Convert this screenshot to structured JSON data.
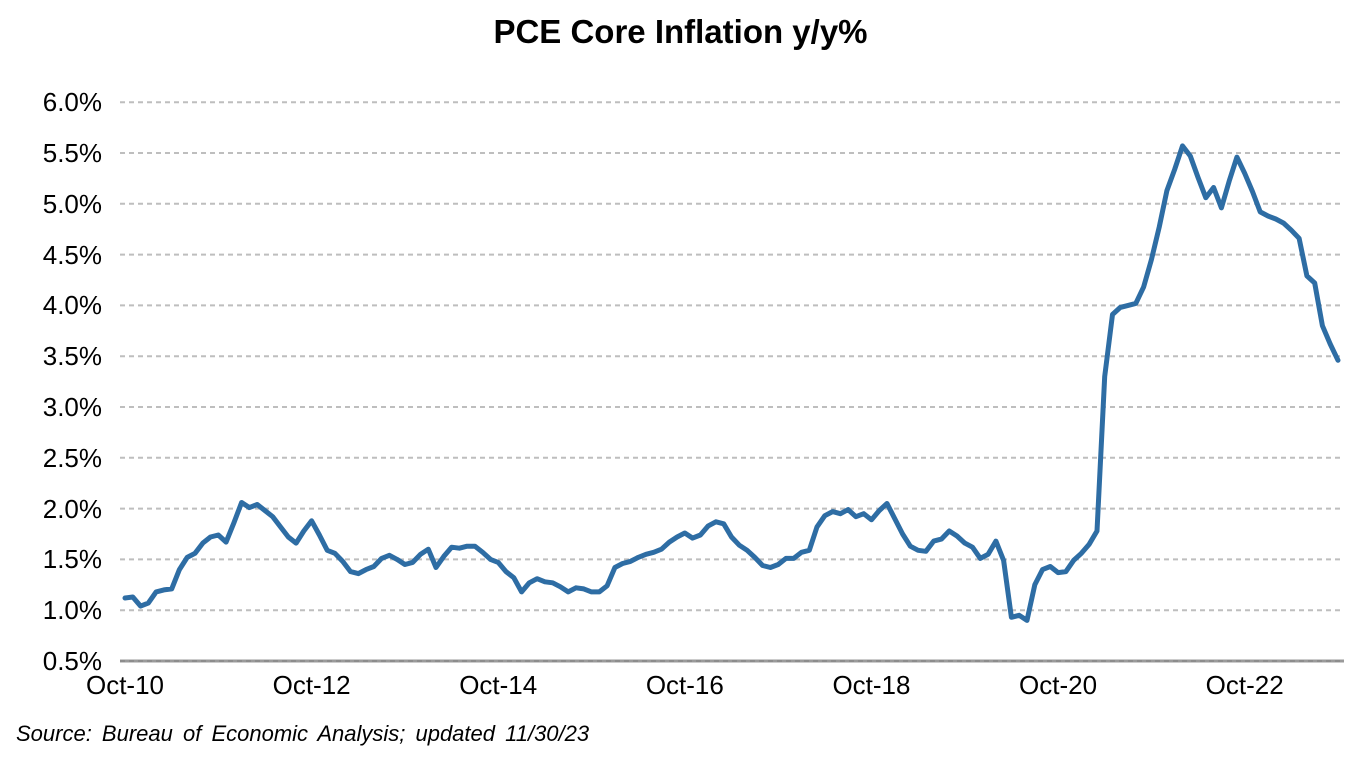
{
  "title": "PCE Core Inflation y/y%",
  "source_note": "Source: Bureau of Economic Analysis; updated 11/30/23",
  "colors": {
    "line": "#2E6DA4",
    "gridline": "#BEBEBE",
    "axis_line": "#9A9A9A",
    "text": "#000000",
    "background": "#FFFFFF"
  },
  "chart_data": {
    "type": "line",
    "title": "PCE Core Inflation y/y%",
    "xlabel": "",
    "ylabel": "",
    "frequency": "monthly",
    "ylim": [
      0.5,
      6.0
    ],
    "y_tick_step": 0.5,
    "grid": "horizontal-dashed",
    "legend": "none",
    "y_tick_labels": [
      "0.5%",
      "1.0%",
      "1.5%",
      "2.0%",
      "2.5%",
      "3.0%",
      "3.5%",
      "4.0%",
      "4.5%",
      "5.0%",
      "5.5%",
      "6.0%"
    ],
    "x_tick_labels": [
      "Oct-10",
      "Oct-12",
      "Oct-14",
      "Oct-16",
      "Oct-18",
      "Oct-20",
      "Oct-22"
    ],
    "x_tick_month_indices": [
      0,
      24,
      48,
      72,
      96,
      120,
      144
    ],
    "months": [
      "Oct-10",
      "Nov-10",
      "Dec-10",
      "Jan-11",
      "Feb-11",
      "Mar-11",
      "Apr-11",
      "May-11",
      "Jun-11",
      "Jul-11",
      "Aug-11",
      "Sep-11",
      "Oct-11",
      "Nov-11",
      "Dec-11",
      "Jan-12",
      "Feb-12",
      "Mar-12",
      "Apr-12",
      "May-12",
      "Jun-12",
      "Jul-12",
      "Aug-12",
      "Sep-12",
      "Oct-12",
      "Nov-12",
      "Dec-12",
      "Jan-13",
      "Feb-13",
      "Mar-13",
      "Apr-13",
      "May-13",
      "Jun-13",
      "Jul-13",
      "Aug-13",
      "Sep-13",
      "Oct-13",
      "Nov-13",
      "Dec-13",
      "Jan-14",
      "Feb-14",
      "Mar-14",
      "Apr-14",
      "May-14",
      "Jun-14",
      "Jul-14",
      "Aug-14",
      "Sep-14",
      "Oct-14",
      "Nov-14",
      "Dec-14",
      "Jan-15",
      "Feb-15",
      "Mar-15",
      "Apr-15",
      "May-15",
      "Jun-15",
      "Jul-15",
      "Aug-15",
      "Sep-15",
      "Oct-15",
      "Nov-15",
      "Dec-15",
      "Jan-16",
      "Feb-16",
      "Mar-16",
      "Apr-16",
      "May-16",
      "Jun-16",
      "Jul-16",
      "Aug-16",
      "Sep-16",
      "Oct-16",
      "Nov-16",
      "Dec-16",
      "Jan-17",
      "Feb-17",
      "Mar-17",
      "Apr-17",
      "May-17",
      "Jun-17",
      "Jul-17",
      "Aug-17",
      "Sep-17",
      "Oct-17",
      "Nov-17",
      "Dec-17",
      "Jan-18",
      "Feb-18",
      "Mar-18",
      "Apr-18",
      "May-18",
      "Jun-18",
      "Jul-18",
      "Aug-18",
      "Sep-18",
      "Oct-18",
      "Nov-18",
      "Dec-18",
      "Jan-19",
      "Feb-19",
      "Mar-19",
      "Apr-19",
      "May-19",
      "Jun-19",
      "Jul-19",
      "Aug-19",
      "Sep-19",
      "Oct-19",
      "Nov-19",
      "Dec-19",
      "Jan-20",
      "Feb-20",
      "Mar-20",
      "Apr-20",
      "May-20",
      "Jun-20",
      "Jul-20",
      "Aug-20",
      "Sep-20",
      "Oct-20",
      "Nov-20",
      "Dec-20",
      "Jan-21",
      "Feb-21",
      "Mar-21",
      "Apr-21",
      "May-21",
      "Jun-21",
      "Jul-21",
      "Aug-21",
      "Sep-21",
      "Oct-21",
      "Nov-21",
      "Dec-21",
      "Jan-22",
      "Feb-22",
      "Mar-22",
      "Apr-22",
      "May-22",
      "Jun-22",
      "Jul-22",
      "Aug-22",
      "Sep-22",
      "Oct-22",
      "Nov-22",
      "Dec-22",
      "Jan-23",
      "Feb-23",
      "Mar-23",
      "Apr-23",
      "May-23",
      "Jun-23",
      "Jul-23",
      "Aug-23",
      "Sep-23",
      "Oct-23"
    ],
    "values": [
      1.12,
      1.13,
      1.04,
      1.07,
      1.18,
      1.2,
      1.21,
      1.4,
      1.52,
      1.56,
      1.66,
      1.72,
      1.74,
      1.67,
      1.86,
      2.06,
      2.01,
      2.04,
      1.98,
      1.92,
      1.82,
      1.72,
      1.66,
      1.78,
      1.88,
      1.74,
      1.59,
      1.56,
      1.48,
      1.38,
      1.36,
      1.4,
      1.43,
      1.51,
      1.54,
      1.5,
      1.45,
      1.47,
      1.55,
      1.6,
      1.42,
      1.53,
      1.62,
      1.61,
      1.63,
      1.63,
      1.57,
      1.5,
      1.47,
      1.38,
      1.32,
      1.18,
      1.27,
      1.31,
      1.28,
      1.27,
      1.23,
      1.18,
      1.22,
      1.21,
      1.18,
      1.18,
      1.24,
      1.42,
      1.46,
      1.48,
      1.52,
      1.55,
      1.57,
      1.6,
      1.67,
      1.72,
      1.76,
      1.71,
      1.74,
      1.83,
      1.87,
      1.85,
      1.72,
      1.64,
      1.59,
      1.52,
      1.44,
      1.42,
      1.45,
      1.51,
      1.51,
      1.57,
      1.59,
      1.82,
      1.93,
      1.97,
      1.95,
      1.99,
      1.92,
      1.95,
      1.89,
      1.98,
      2.05,
      1.9,
      1.75,
      1.63,
      1.59,
      1.58,
      1.68,
      1.7,
      1.78,
      1.73,
      1.66,
      1.62,
      1.51,
      1.55,
      1.68,
      1.49,
      0.93,
      0.95,
      0.9,
      1.25,
      1.4,
      1.43,
      1.37,
      1.38,
      1.49,
      1.56,
      1.65,
      1.78,
      3.3,
      3.91,
      3.98,
      4.0,
      4.02,
      4.18,
      4.45,
      4.77,
      5.13,
      5.34,
      5.57,
      5.47,
      5.26,
      5.06,
      5.16,
      4.96,
      5.22,
      5.46,
      5.3,
      5.12,
      4.92,
      4.88,
      4.85,
      4.81,
      4.74,
      4.66,
      4.29,
      4.22,
      3.8,
      3.62,
      3.46
    ]
  }
}
